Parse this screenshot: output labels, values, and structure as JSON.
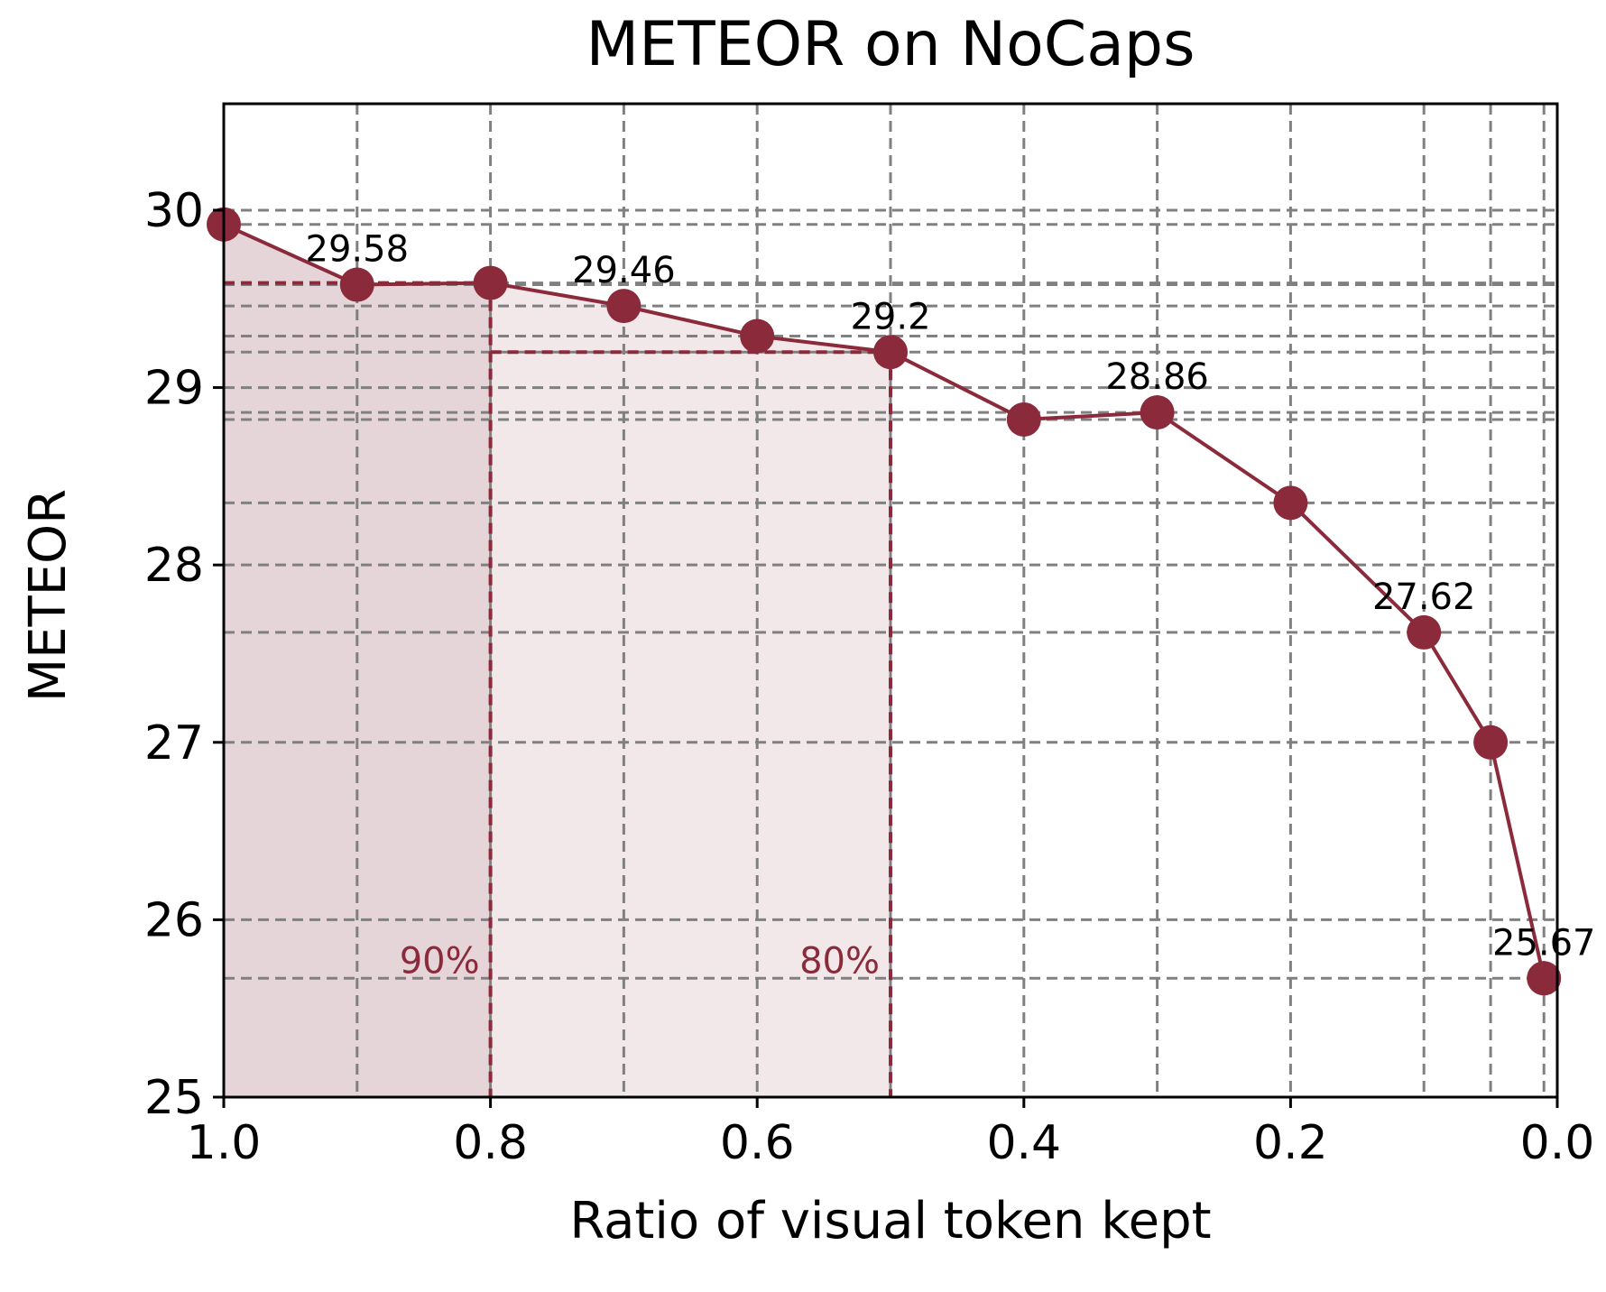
{
  "chart_data": {
    "type": "line",
    "title": "METEOR on NoCaps",
    "xlabel": "Ratio of visual token kept",
    "ylabel": "METEOR",
    "xlim": [
      1.0,
      0.0
    ],
    "ylim": [
      25,
      30.6
    ],
    "x_inverted": true,
    "x_ticks": [
      1.0,
      0.8,
      0.6,
      0.4,
      0.2,
      0.0
    ],
    "x_tick_labels": [
      "1.0",
      "0.8",
      "0.6",
      "0.4",
      "0.2",
      "0.0"
    ],
    "y_ticks": [
      25,
      26,
      27,
      28,
      29,
      30
    ],
    "y_tick_labels": [
      "25",
      "26",
      "27",
      "28",
      "29",
      "30"
    ],
    "grid": "dashed lines at each data point's x and y value",
    "series": [
      {
        "x": [
          1.0,
          0.9,
          0.8,
          0.7,
          0.6,
          0.5,
          0.4,
          0.3,
          0.2,
          0.1,
          0.05,
          0.01
        ],
        "y": [
          29.92,
          29.58,
          29.59,
          29.46,
          29.29,
          29.2,
          28.82,
          28.86,
          28.35,
          27.62,
          27.0,
          25.67
        ],
        "color": "#8b2a3a"
      }
    ],
    "data_labels": [
      {
        "x": 0.9,
        "y": 29.58,
        "text": "29.58"
      },
      {
        "x": 0.7,
        "y": 29.46,
        "text": "29.46"
      },
      {
        "x": 0.5,
        "y": 29.2,
        "text": "29.2"
      },
      {
        "x": 0.3,
        "y": 28.86,
        "text": "28.86"
      },
      {
        "x": 0.1,
        "y": 27.62,
        "text": "27.62"
      },
      {
        "x": 0.01,
        "y": 25.67,
        "text": "25.67"
      }
    ],
    "thresholds": [
      {
        "label": "90%",
        "x": 0.8,
        "fill_from": 1.0,
        "fill_color": "#e6d5d8"
      },
      {
        "label": "80%",
        "x": 0.5,
        "fill_from": 0.8,
        "fill_color": "#f2e8ea"
      }
    ],
    "accent_color": "#8b2a3a",
    "grid_color": "#808080"
  }
}
